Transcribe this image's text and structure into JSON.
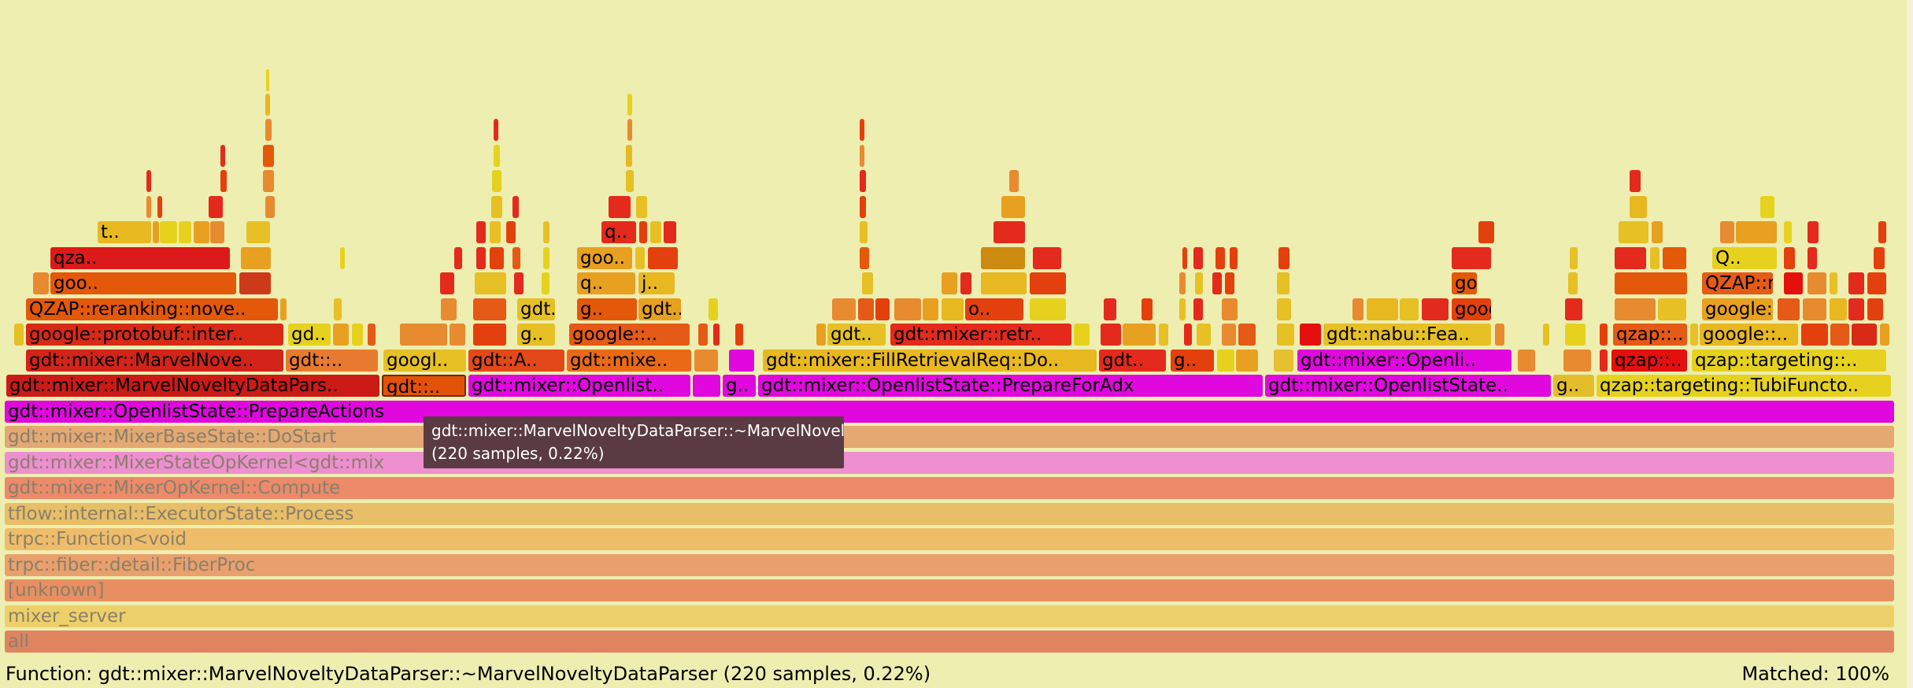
{
  "flamegraph": {
    "frames": [
      {
        "label": "all",
        "depth": 0
      },
      {
        "label": "mixer_server",
        "depth": 1
      },
      {
        "label": "[unknown]",
        "depth": 2
      },
      {
        "label": "trpc::fiber::detail::FiberProc",
        "depth": 3
      },
      {
        "label": "trpc::Function<void",
        "depth": 4
      },
      {
        "label": "tflow::internal::ExecutorState::Process",
        "depth": 5
      },
      {
        "label": "gdt::mixer::MixerOpKernel::Compute",
        "depth": 6
      },
      {
        "label": "gdt::mixer::MixerStateOpKernel<gdt::mix",
        "depth": 7
      },
      {
        "label": "gdt::mixer::MixerBaseState::DoStart",
        "depth": 8
      },
      {
        "label": "gdt::mixer::OpenlistState::PrepareActions",
        "depth": 9
      },
      {
        "label": "gdt::mixer::MarvelNoveltyDataPars..",
        "depth": 10
      },
      {
        "label": "gdt::..",
        "depth": 10
      },
      {
        "label": "gdt::mixer::Openlist..",
        "depth": 10
      },
      {
        "label": "g..",
        "depth": 10
      },
      {
        "label": "gdt::mixer::OpenlistState::PrepareForAdx",
        "depth": 10
      },
      {
        "label": "gdt::mixer::OpenlistState..",
        "depth": 10
      },
      {
        "label": "g..",
        "depth": 10
      },
      {
        "label": "qzap::targeting::TubiFuncto..",
        "depth": 10
      },
      {
        "label": "gdt::mixer::MarvelNove..",
        "depth": 11
      },
      {
        "label": "gdt::..",
        "depth": 11
      },
      {
        "label": "googl..",
        "depth": 11
      },
      {
        "label": "gdt::A..",
        "depth": 11
      },
      {
        "label": "gdt::mixe..",
        "depth": 11
      },
      {
        "label": "gdt::mixer::FillRetrievalReq::Do..",
        "depth": 11
      },
      {
        "label": "gdt..",
        "depth": 11
      },
      {
        "label": "g..",
        "depth": 11
      },
      {
        "label": "gdt::mixer::Openli..",
        "depth": 11
      },
      {
        "label": "qzap::..",
        "depth": 11
      },
      {
        "label": "qzap::targeting::..",
        "depth": 11
      },
      {
        "label": "google::protobuf::inter..",
        "depth": 12
      },
      {
        "label": "gd..",
        "depth": 12
      },
      {
        "label": "g..",
        "depth": 12
      },
      {
        "label": "google::..",
        "depth": 12
      },
      {
        "label": "gdt..",
        "depth": 12
      },
      {
        "label": "gdt::mixer::retr..",
        "depth": 12
      },
      {
        "label": "gdt::nabu::Fea..",
        "depth": 12
      },
      {
        "label": "qzap::..",
        "depth": 12
      },
      {
        "label": "google::..",
        "depth": 12
      },
      {
        "label": "QZAP::reranking::nove..",
        "depth": 13
      },
      {
        "label": "gdt..",
        "depth": 13
      },
      {
        "label": "g..",
        "depth": 13
      },
      {
        "label": "gdt..",
        "depth": 13
      },
      {
        "label": "o..",
        "depth": 13
      },
      {
        "label": "goog..",
        "depth": 13
      },
      {
        "label": "google::protobuf..",
        "depth": 14
      },
      {
        "label": "goo..",
        "depth": 14
      },
      {
        "label": "q..",
        "depth": 14
      },
      {
        "label": "j..",
        "depth": 14
      },
      {
        "label": "goog..",
        "depth": 14
      },
      {
        "label": "QZAP::rerankin..",
        "depth": 15
      },
      {
        "label": "qza..",
        "depth": 15
      },
      {
        "label": "goo..",
        "depth": 15
      },
      {
        "label": "Q..",
        "depth": 16
      },
      {
        "label": "t..",
        "depth": 16
      },
      {
        "label": "q..",
        "depth": 16
      }
    ]
  },
  "tooltip": {
    "text": "gdt::mixer::MarvelNoveltyDataParser::~MarvelNoveltyDataParser (220 samples, 0.22%)"
  },
  "status": {
    "function": "Function: gdt::mixer::MarvelNoveltyDataParser::~MarvelNoveltyDataParser (220 samples, 0.22%)",
    "matched": "Matched: 100%"
  }
}
